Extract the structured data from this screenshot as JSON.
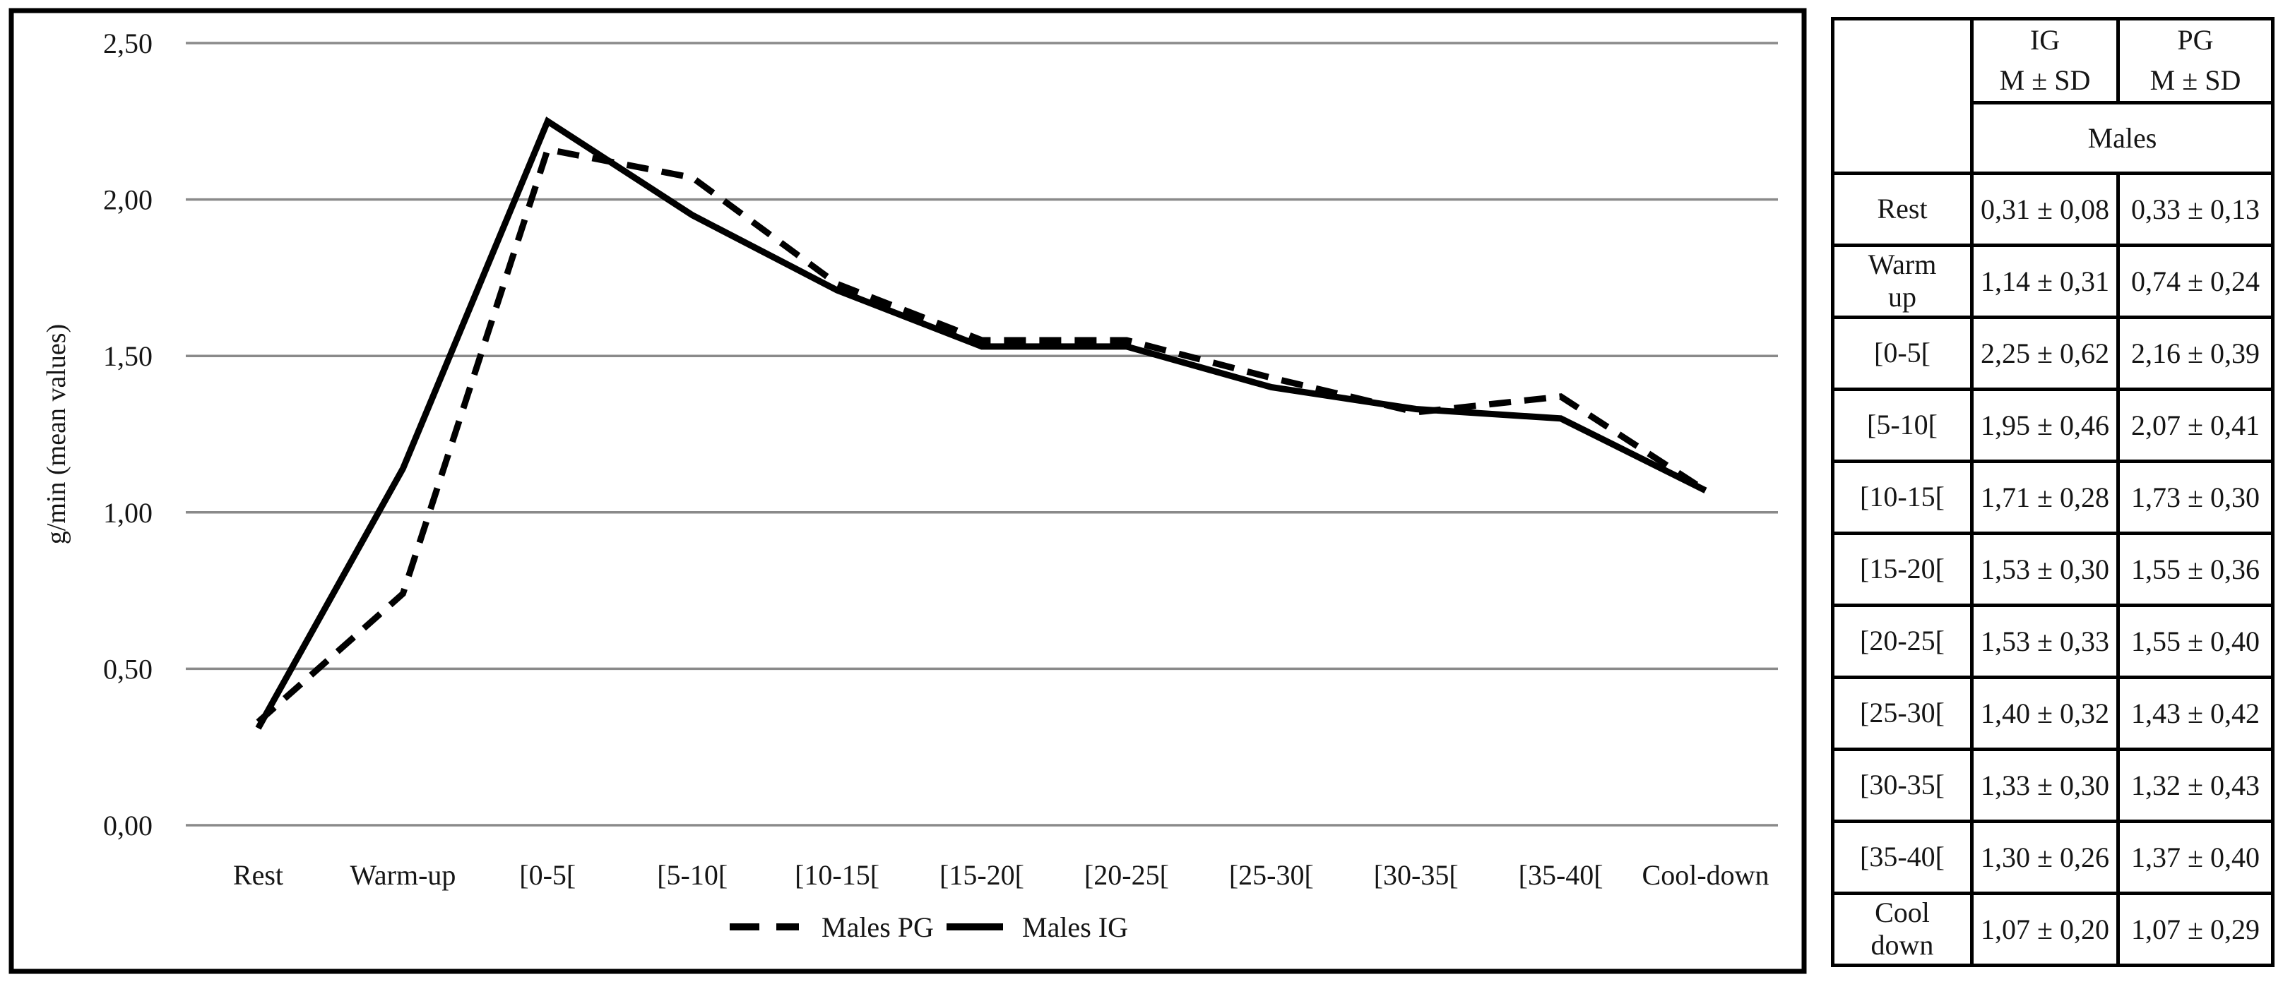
{
  "chart_data": {
    "type": "line",
    "title": "",
    "xlabel": "",
    "ylabel": "g/min (mean values)",
    "categories": [
      "Rest",
      "Warm-up",
      "[0-5[",
      "[5-10[",
      "[10-15[",
      "[15-20[",
      "[20-25[",
      "[25-30[",
      "[30-35[",
      "[35-40[",
      "Cool-down"
    ],
    "series": [
      {
        "name": "Males PG",
        "style": "dashed",
        "values": [
          0.33,
          0.74,
          2.16,
          2.07,
          1.73,
          1.55,
          1.55,
          1.43,
          1.32,
          1.37,
          1.07
        ]
      },
      {
        "name": "Males IG",
        "style": "solid",
        "values": [
          0.31,
          1.14,
          2.25,
          1.95,
          1.71,
          1.53,
          1.53,
          1.4,
          1.33,
          1.3,
          1.07
        ]
      }
    ],
    "ylim": [
      0,
      2.5
    ],
    "ytick_step": 0.5,
    "ytick_labels": [
      "0,00",
      "0,50",
      "1,00",
      "1,50",
      "2,00",
      "2,50"
    ],
    "grid": "horizontal-only",
    "legend_position": "bottom-center",
    "line_color": "#000000",
    "grid_color": "#8a8a8a",
    "border_color": "#000000"
  },
  "table": {
    "col_headers": [
      {
        "line1": "IG",
        "line2": "M ± SD"
      },
      {
        "line1": "PG",
        "line2": "M ± SD"
      }
    ],
    "group_header": "Males",
    "rows": [
      {
        "label": "Rest",
        "ig": "0,31 ± 0,08",
        "pg": "0,33 ± 0,13"
      },
      {
        "label": "Warm\nup",
        "ig": "1,14 ± 0,31",
        "pg": "0,74 ± 0,24"
      },
      {
        "label": "[0-5[",
        "ig": "2,25 ± 0,62",
        "pg": "2,16 ± 0,39"
      },
      {
        "label": "[5-10[",
        "ig": "1,95 ± 0,46",
        "pg": "2,07 ± 0,41"
      },
      {
        "label": "[10-15[",
        "ig": "1,71 ± 0,28",
        "pg": "1,73 ± 0,30"
      },
      {
        "label": "[15-20[",
        "ig": "1,53 ± 0,30",
        "pg": "1,55 ± 0,36"
      },
      {
        "label": "[20-25[",
        "ig": "1,53 ± 0,33",
        "pg": "1,55 ± 0,40"
      },
      {
        "label": "[25-30[",
        "ig": "1,40 ± 0,32",
        "pg": "1,43 ± 0,42"
      },
      {
        "label": "[30-35[",
        "ig": "1,33 ± 0,30",
        "pg": "1,32 ± 0,43"
      },
      {
        "label": "[35-40[",
        "ig": "1,30 ± 0,26",
        "pg": "1,37 ± 0,40"
      },
      {
        "label": "Cool\ndown",
        "ig": "1,07 ± 0,20",
        "pg": "1,07 ± 0,29"
      }
    ]
  }
}
